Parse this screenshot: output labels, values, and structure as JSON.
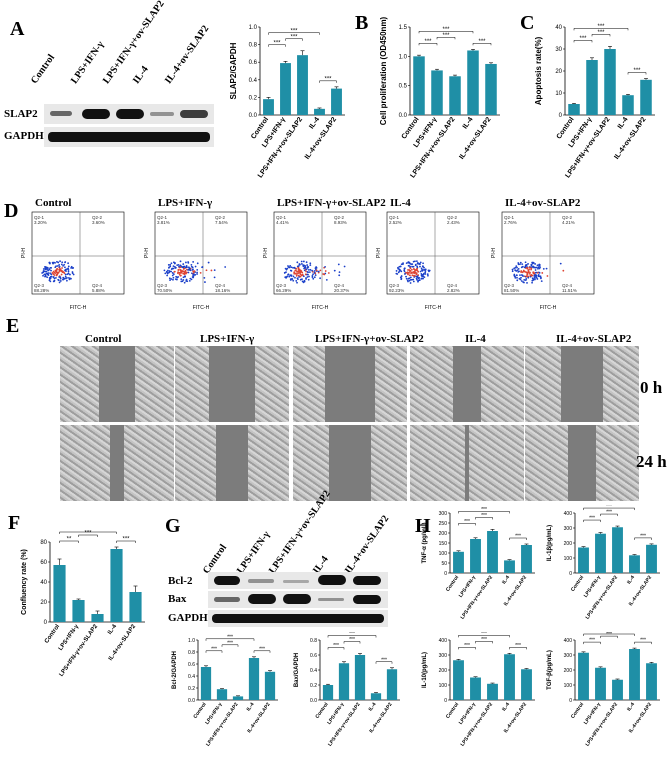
{
  "panels": {
    "A": "A",
    "B": "B",
    "C": "C",
    "D": "D",
    "E": "E",
    "F": "F",
    "G": "G",
    "H": "H"
  },
  "groups": [
    "Control",
    "LPS+IFN-γ",
    "LPS+IFN-γ+ov-SLAP2",
    "IL-4",
    "IL-4+ov-SLAP2"
  ],
  "blotA": {
    "rows": [
      "SLAP2",
      "GAPDH"
    ]
  },
  "blotG": {
    "rows": [
      "Bcl-2",
      "Bax",
      "GAPDH"
    ]
  },
  "times": [
    "0 h",
    "24 h"
  ],
  "flow": [
    {
      "q1": "Q2-1\n3.20%",
      "q2": "Q2-2\n3.60%",
      "q3": "Q2-3\n88.28%",
      "q4": "Q2-4\n5.88%"
    },
    {
      "q1": "Q2-1\n3.81%",
      "q2": "Q2-2\n7.54%",
      "q3": "Q2-3\n70.50%",
      "q4": "Q2-4\n18.16%"
    },
    {
      "q1": "Q2-1\n4.41%",
      "q2": "Q2-2\n8.93%",
      "q3": "Q2-3\n66.29%",
      "q4": "Q2-4\n20.37%"
    },
    {
      "q1": "Q2-1\n2.52%",
      "q2": "Q2-2\n2.43%",
      "q3": "Q2-3\n92.23%",
      "q4": "Q2-4\n2.82%"
    },
    {
      "q1": "Q2-1\n2.76%",
      "q2": "Q2-2\n4.21%",
      "q3": "Q2-3\n81.50%",
      "q4": "Q2-4\n11.51%"
    }
  ],
  "flow_axes": {
    "x": "FITC-H",
    "y": "PI-H"
  },
  "chart_data": [
    {
      "id": "A",
      "type": "bar",
      "ylabel": "SLAP2/GAPDH",
      "ylim": [
        0,
        1.0
      ],
      "ticks": [
        "0.0",
        "0.2",
        "0.4",
        "0.6",
        "0.8",
        "1.0"
      ],
      "categories": [
        "Control",
        "LPS+IFN-γ",
        "LPS+IFN-γ+ov-SLAP2",
        "IL-4",
        "IL-4+ov-SLAP2"
      ],
      "values": [
        0.18,
        0.59,
        0.68,
        0.07,
        0.3
      ],
      "errors": [
        0.02,
        0.02,
        0.05,
        0.01,
        0.02
      ],
      "sig": [
        "***",
        "***",
        "***",
        "***"
      ]
    },
    {
      "id": "B",
      "type": "bar",
      "ylabel": "Cell proliferation (OD450nm)",
      "ylim": [
        0,
        1.5
      ],
      "ticks": [
        "0.0",
        "0.5",
        "1.0",
        "1.5"
      ],
      "categories": [
        "Control",
        "LPS+IFN-γ",
        "LPS+IFN-γ+ov-SLAP2",
        "IL-4",
        "IL-4+ov-SLAP2"
      ],
      "values": [
        1.0,
        0.76,
        0.66,
        1.1,
        0.87
      ],
      "errors": [
        0.02,
        0.02,
        0.02,
        0.02,
        0.02
      ],
      "sig": [
        "***",
        "***",
        "***",
        "***"
      ]
    },
    {
      "id": "C",
      "type": "bar",
      "ylabel": "Apoptosis rate(%)",
      "ylim": [
        0,
        40
      ],
      "ticks": [
        "0",
        "10",
        "20",
        "30",
        "40"
      ],
      "categories": [
        "Control",
        "LPS+IFN-γ",
        "LPS+IFN-γ+ov-SLAP2",
        "IL-4",
        "IL-4+ov-SLAP2"
      ],
      "values": [
        5,
        25,
        30,
        9,
        16
      ],
      "errors": [
        0.3,
        1.0,
        1.2,
        0.4,
        0.6
      ],
      "sig": [
        "***",
        "***",
        "***",
        "***"
      ]
    },
    {
      "id": "F",
      "type": "bar",
      "ylabel": "Confluency rate (%)",
      "ylim": [
        0,
        80
      ],
      "ticks": [
        "0",
        "20",
        "40",
        "60",
        "80"
      ],
      "categories": [
        "Control",
        "LPS+IFN-γ",
        "LPS+IFN-γ+ov-SLAP2",
        "IL-4",
        "IL-4+ov-SLAP2"
      ],
      "values": [
        57,
        22,
        8,
        73,
        30
      ],
      "errors": [
        6,
        1,
        3,
        2,
        6
      ],
      "sig": [
        "**",
        "***",
        "**",
        "***"
      ]
    },
    {
      "id": "G1",
      "type": "bar",
      "ylabel": "Bcl-2/GAPDH",
      "ylim": [
        0,
        1.0
      ],
      "ticks": [
        "0.0",
        "0.2",
        "0.4",
        "0.6",
        "0.8",
        "1.0"
      ],
      "categories": [
        "Control",
        "LPS+IFN-γ",
        "LPS+IFN-γ+ov-SLAP2",
        "IL-4",
        "IL-4+ov-SLAP2"
      ],
      "values": [
        0.55,
        0.18,
        0.06,
        0.7,
        0.47
      ],
      "errors": [
        0.02,
        0.01,
        0.01,
        0.02,
        0.02
      ],
      "sig": [
        "***",
        "***",
        "***",
        "***"
      ]
    },
    {
      "id": "G2",
      "type": "bar",
      "ylabel": "Bax/GAPDH",
      "ylim": [
        0,
        0.8
      ],
      "ticks": [
        "0.0",
        "0.2",
        "0.4",
        "0.6",
        "0.8"
      ],
      "categories": [
        "Control",
        "LPS+IFN-γ",
        "LPS+IFN-γ+ov-SLAP2",
        "IL-4",
        "IL-4+ov-SLAP2"
      ],
      "values": [
        0.2,
        0.49,
        0.6,
        0.09,
        0.41
      ],
      "errors": [
        0.01,
        0.02,
        0.02,
        0.01,
        0.02
      ],
      "sig": [
        "***",
        "***",
        "***",
        "***"
      ]
    },
    {
      "id": "H1",
      "type": "bar",
      "ylabel": "TNF-α (pg/mL)",
      "ylim": [
        0,
        300
      ],
      "ticks": [
        "0",
        "50",
        "100",
        "150",
        "200",
        "250",
        "300"
      ],
      "categories": [
        "Control",
        "LPS+IFN-γ",
        "LPS+IFN-γ+ov-SLAP2",
        "IL-4",
        "IL-4+ov-SLAP2"
      ],
      "values": [
        106,
        170,
        210,
        63,
        140
      ],
      "errors": [
        5,
        6,
        8,
        4,
        5
      ],
      "sig": [
        "***",
        "***",
        "***",
        "***"
      ]
    },
    {
      "id": "H2",
      "type": "bar",
      "ylabel": "IL-1β(pg/mL)",
      "ylim": [
        0,
        400
      ],
      "ticks": [
        "0",
        "100",
        "200",
        "300",
        "400"
      ],
      "categories": [
        "Control",
        "LPS+IFN-γ",
        "LPS+IFN-γ+ov-SLAP2",
        "IL-4",
        "IL-4+ov-SLAP2"
      ],
      "values": [
        170,
        262,
        305,
        118,
        188
      ],
      "errors": [
        6,
        8,
        8,
        5,
        6
      ],
      "sig": [
        "***",
        "***",
        "***",
        "***"
      ]
    },
    {
      "id": "H3",
      "type": "bar",
      "ylabel": "IL-10(pg/mL)",
      "ylim": [
        0,
        400
      ],
      "ticks": [
        "0",
        "100",
        "200",
        "300",
        "400"
      ],
      "categories": [
        "Control",
        "LPS+IFN-γ",
        "LPS+IFN-γ+ov-SLAP2",
        "IL-4",
        "IL-4+ov-SLAP2"
      ],
      "values": [
        265,
        150,
        108,
        305,
        205
      ],
      "errors": [
        6,
        5,
        5,
        6,
        5
      ],
      "sig": [
        "***",
        "***",
        "***",
        "***"
      ]
    },
    {
      "id": "H4",
      "type": "bar",
      "ylabel": "TGF-β(pg/mL)",
      "ylim": [
        0,
        400
      ],
      "ticks": [
        "0",
        "100",
        "200",
        "300",
        "400"
      ],
      "categories": [
        "Control",
        "LPS+IFN-γ",
        "LPS+IFN-γ+ov-SLAP2",
        "IL-4",
        "IL-4+ov-SLAP2"
      ],
      "values": [
        315,
        215,
        135,
        340,
        245
      ],
      "errors": [
        6,
        6,
        5,
        6,
        6
      ],
      "sig": [
        "***",
        "***",
        "***",
        "***"
      ]
    }
  ],
  "colors": {
    "bar": "#1f8fa6",
    "axis": "#000000"
  }
}
